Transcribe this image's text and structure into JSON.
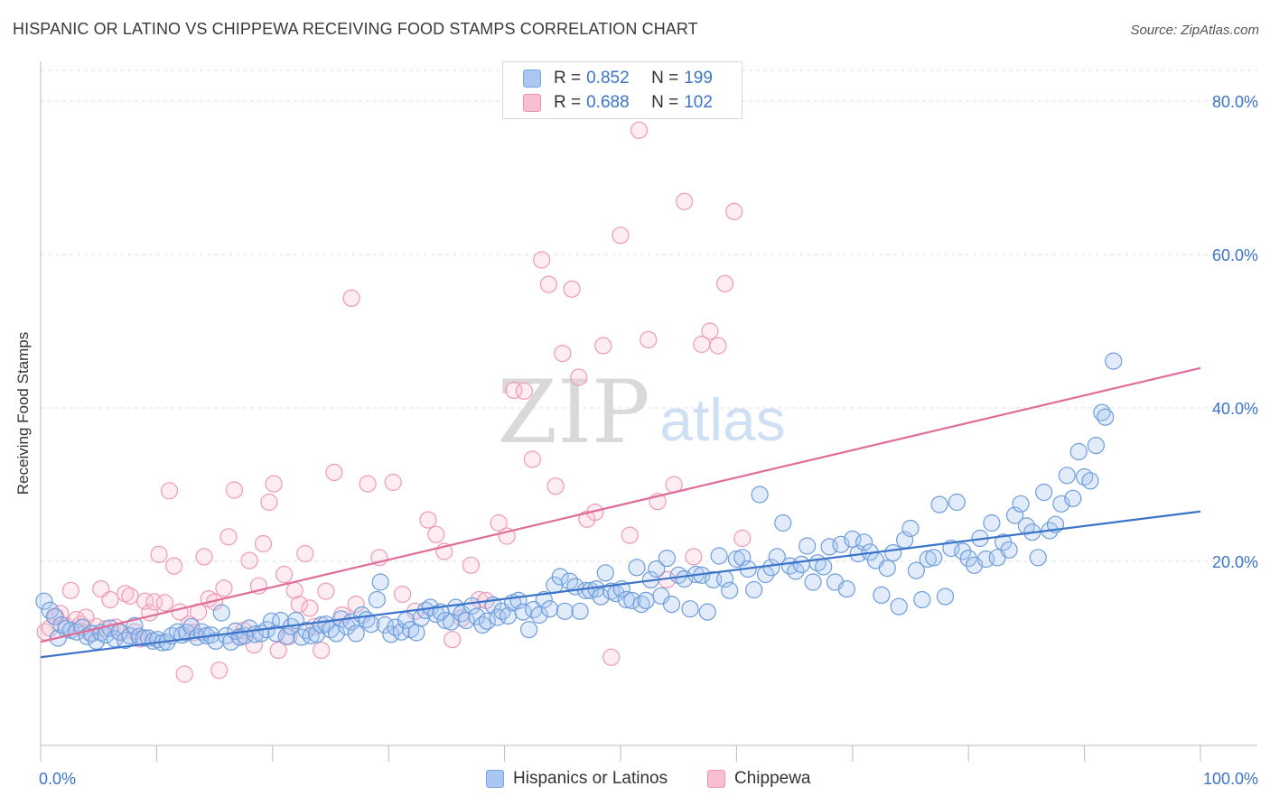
{
  "title": "HISPANIC OR LATINO VS CHIPPEWA RECEIVING FOOD STAMPS CORRELATION CHART",
  "source": "Source: ZipAtlas.com",
  "watermark": {
    "part1": "ZIP",
    "part2": "atlas"
  },
  "legend": {
    "r_label": "R =",
    "n_label": "N =",
    "rows": [
      {
        "r": "0.852",
        "n": "199",
        "color": "#a9c7f0",
        "stroke": "#7aa6e0"
      },
      {
        "r": "0.688",
        "n": "102",
        "color": "#f8bfd0",
        "stroke": "#ee92ad"
      }
    ]
  },
  "bottom_legend": [
    "Hispanics or Latinos",
    "Chippewa"
  ],
  "chart_data": {
    "type": "scatter",
    "title": "HISPANIC OR LATINO VS CHIPPEWA RECEIVING FOOD STAMPS CORRELATION CHART",
    "xlabel": "",
    "ylabel": "Receiving Food Stamps",
    "xlim": [
      0,
      100
    ],
    "ylim": [
      -4,
      84
    ],
    "x_tick_labels": [
      "0.0%",
      "100.0%"
    ],
    "y_ticks": [
      20,
      40,
      60,
      80
    ],
    "y_tick_labels": [
      "20.0%",
      "40.0%",
      "60.0%",
      "80.0%"
    ],
    "grid": true,
    "legend_position": "top-center",
    "colors": {
      "blue": "#3b74c9",
      "pink": "#e06c98",
      "blue_fill": "#a9c7f0",
      "pink_fill": "#f8bfd0"
    },
    "series": [
      {
        "name": "Hispanics or Latinos",
        "trend": {
          "x": [
            0,
            100
          ],
          "y": [
            7.5,
            26.5
          ]
        },
        "points": [
          [
            0.3,
            14.8
          ],
          [
            0.8,
            13.6
          ],
          [
            1.2,
            12.8
          ],
          [
            1.5,
            10
          ],
          [
            1.8,
            11.7
          ],
          [
            2.2,
            11.2
          ],
          [
            2.6,
            11
          ],
          [
            3.1,
            10.8
          ],
          [
            3.6,
            11.4
          ],
          [
            4,
            10.2
          ],
          [
            4.4,
            10.6
          ],
          [
            4.8,
            9.6
          ],
          [
            5.2,
            10.7
          ],
          [
            5.6,
            10.4
          ],
          [
            6,
            11.3
          ],
          [
            6.4,
            9.9
          ],
          [
            6.8,
            10.8
          ],
          [
            7.3,
            9.7
          ],
          [
            7.7,
            10.3
          ],
          [
            8.1,
            11.6
          ],
          [
            8.5,
            10.2
          ],
          [
            8.9,
            10
          ],
          [
            9.3,
            10
          ],
          [
            9.7,
            9.6
          ],
          [
            10.1,
            9.8
          ],
          [
            10.5,
            9.4
          ],
          [
            10.9,
            9.5
          ],
          [
            11.3,
            10.3
          ],
          [
            11.8,
            10.8
          ],
          [
            12.2,
            10.4
          ],
          [
            12.6,
            10.7
          ],
          [
            13,
            11.5
          ],
          [
            13.5,
            10.1
          ],
          [
            13.9,
            10.8
          ],
          [
            14.3,
            10.3
          ],
          [
            14.7,
            10.4
          ],
          [
            15.1,
            9.6
          ],
          [
            15.6,
            13.3
          ],
          [
            16,
            10.3
          ],
          [
            16.4,
            9.5
          ],
          [
            16.8,
            10.9
          ],
          [
            17.2,
            10.1
          ],
          [
            17.6,
            10.3
          ],
          [
            18,
            11.3
          ],
          [
            18.5,
            10.5
          ],
          [
            19,
            10.6
          ],
          [
            19.5,
            11.1
          ],
          [
            19.9,
            12.2
          ],
          [
            20.3,
            10.6
          ],
          [
            20.7,
            12.3
          ],
          [
            21.2,
            10.2
          ],
          [
            21.6,
            11.5
          ],
          [
            22,
            12.3
          ],
          [
            22.5,
            10.1
          ],
          [
            22.9,
            11
          ],
          [
            23.3,
            10.3
          ],
          [
            23.8,
            10.5
          ],
          [
            24.2,
            11.7
          ],
          [
            24.6,
            11.8
          ],
          [
            25,
            11.1
          ],
          [
            25.5,
            10.6
          ],
          [
            25.9,
            12.5
          ],
          [
            26.4,
            11.5
          ],
          [
            26.8,
            12.1
          ],
          [
            27.2,
            10.6
          ],
          [
            27.7,
            13
          ],
          [
            28.1,
            12.4
          ],
          [
            28.5,
            11.8
          ],
          [
            29,
            15
          ],
          [
            29.3,
            17.3
          ],
          [
            29.7,
            11.7
          ],
          [
            30.2,
            10.5
          ],
          [
            30.6,
            11.4
          ],
          [
            31.1,
            10.8
          ],
          [
            31.5,
            12.3
          ],
          [
            31.9,
            11.1
          ],
          [
            32.4,
            10.7
          ],
          [
            32.8,
            12.6
          ],
          [
            33.2,
            13.6
          ],
          [
            33.6,
            14
          ],
          [
            34.1,
            13.1
          ],
          [
            34.5,
            13.4
          ],
          [
            34.9,
            12.3
          ],
          [
            35.4,
            12.1
          ],
          [
            35.8,
            14
          ],
          [
            36.3,
            13.2
          ],
          [
            36.7,
            12.3
          ],
          [
            37.2,
            14.2
          ],
          [
            37.6,
            12.8
          ],
          [
            38.1,
            11.7
          ],
          [
            38.5,
            12.2
          ],
          [
            39,
            14.3
          ],
          [
            39.4,
            12.7
          ],
          [
            39.8,
            13.5
          ],
          [
            40.3,
            12.9
          ],
          [
            40.7,
            14.6
          ],
          [
            41.2,
            14.9
          ],
          [
            41.6,
            13.4
          ],
          [
            42.1,
            11.1
          ],
          [
            42.5,
            13.7
          ],
          [
            43,
            13
          ],
          [
            43.4,
            15
          ],
          [
            43.9,
            13.8
          ],
          [
            44.3,
            16.9
          ],
          [
            44.8,
            18
          ],
          [
            45.2,
            13.5
          ],
          [
            45.6,
            17.4
          ],
          [
            46.1,
            16.7
          ],
          [
            46.5,
            13.5
          ],
          [
            47,
            16.2
          ],
          [
            47.4,
            16.2
          ],
          [
            47.9,
            16.4
          ],
          [
            48.3,
            15.4
          ],
          [
            48.7,
            18.5
          ],
          [
            49.2,
            16.1
          ],
          [
            49.6,
            15.8
          ],
          [
            50.1,
            16.4
          ],
          [
            50.5,
            15
          ],
          [
            51,
            14.9
          ],
          [
            51.4,
            19.2
          ],
          [
            51.8,
            14.4
          ],
          [
            52.2,
            14.9
          ],
          [
            52.6,
            17.6
          ],
          [
            53.1,
            19
          ],
          [
            53.5,
            15.5
          ],
          [
            54,
            20.4
          ],
          [
            54.4,
            14.4
          ],
          [
            55,
            18.2
          ],
          [
            55.5,
            17.7
          ],
          [
            56,
            13.8
          ],
          [
            56.5,
            18.3
          ],
          [
            57,
            18.2
          ],
          [
            57.5,
            13.4
          ],
          [
            58,
            17.6
          ],
          [
            58.5,
            20.7
          ],
          [
            59,
            17.7
          ],
          [
            59.4,
            16.2
          ],
          [
            60,
            20.3
          ],
          [
            60.5,
            20.5
          ],
          [
            61,
            19
          ],
          [
            61.5,
            16.3
          ],
          [
            62,
            28.7
          ],
          [
            62.5,
            18.3
          ],
          [
            63,
            19.2
          ],
          [
            63.5,
            20.6
          ],
          [
            64,
            25
          ],
          [
            64.6,
            19.4
          ],
          [
            65.1,
            18.7
          ],
          [
            65.6,
            19.6
          ],
          [
            66.1,
            22
          ],
          [
            66.6,
            17.3
          ],
          [
            67,
            19.8
          ],
          [
            67.5,
            19.3
          ],
          [
            68,
            21.9
          ],
          [
            68.5,
            17.3
          ],
          [
            69,
            22.2
          ],
          [
            69.5,
            16.4
          ],
          [
            70,
            22.9
          ],
          [
            70.5,
            21
          ],
          [
            71,
            22.5
          ],
          [
            71.5,
            21.2
          ],
          [
            72,
            20.1
          ],
          [
            72.5,
            15.6
          ],
          [
            73,
            19.1
          ],
          [
            73.5,
            21.1
          ],
          [
            74,
            14.1
          ],
          [
            74.5,
            22.8
          ],
          [
            75,
            24.3
          ],
          [
            75.5,
            18.8
          ],
          [
            76,
            15
          ],
          [
            76.5,
            20.3
          ],
          [
            77,
            20.5
          ],
          [
            77.5,
            27.4
          ],
          [
            78,
            15.4
          ],
          [
            78.5,
            21.7
          ],
          [
            79,
            27.7
          ],
          [
            79.5,
            21.3
          ],
          [
            80,
            20.4
          ],
          [
            80.5,
            19.5
          ],
          [
            81,
            23
          ],
          [
            81.5,
            20.3
          ],
          [
            82,
            25
          ],
          [
            82.5,
            20.5
          ],
          [
            83,
            22.5
          ],
          [
            83.5,
            21.5
          ],
          [
            84,
            26
          ],
          [
            84.5,
            27.5
          ],
          [
            85,
            24.6
          ],
          [
            85.5,
            23.8
          ],
          [
            86,
            20.5
          ],
          [
            86.5,
            29
          ],
          [
            87,
            24
          ],
          [
            87.5,
            24.8
          ],
          [
            88,
            27.5
          ],
          [
            88.5,
            31.2
          ],
          [
            89,
            28.2
          ],
          [
            89.5,
            34.3
          ],
          [
            90,
            31
          ],
          [
            90.5,
            30.5
          ],
          [
            91,
            35.1
          ],
          [
            91.5,
            39.4
          ],
          [
            91.8,
            38.8
          ],
          [
            92.5,
            46.1
          ]
        ]
      },
      {
        "name": "Chippewa",
        "trend": {
          "x": [
            0,
            100
          ],
          "y": [
            9.5,
            45.2
          ]
        },
        "points": [
          [
            0.4,
            10.8
          ],
          [
            0.8,
            11.3
          ],
          [
            1.3,
            12.8
          ],
          [
            1.7,
            13.2
          ],
          [
            2.2,
            11.6
          ],
          [
            2.6,
            16.2
          ],
          [
            3.1,
            12.4
          ],
          [
            3.5,
            11.8
          ],
          [
            3.9,
            12.7
          ],
          [
            4.3,
            10.6
          ],
          [
            4.8,
            11.5
          ],
          [
            5.2,
            16.4
          ],
          [
            5.6,
            11.2
          ],
          [
            6,
            15
          ],
          [
            6.5,
            11.4
          ],
          [
            6.9,
            10.7
          ],
          [
            7.3,
            15.8
          ],
          [
            7.7,
            15.5
          ],
          [
            8.1,
            10.8
          ],
          [
            8.6,
            9.9
          ],
          [
            9,
            14.8
          ],
          [
            9.4,
            13.3
          ],
          [
            9.8,
            14.7
          ],
          [
            10.2,
            20.9
          ],
          [
            10.7,
            14.6
          ],
          [
            11.1,
            29.2
          ],
          [
            11.5,
            19.4
          ],
          [
            12,
            13.4
          ],
          [
            12.4,
            5.3
          ],
          [
            12.8,
            11.8
          ],
          [
            13.2,
            10.7
          ],
          [
            13.6,
            13.4
          ],
          [
            14.1,
            20.6
          ],
          [
            14.5,
            15.1
          ],
          [
            15,
            14.7
          ],
          [
            15.4,
            5.8
          ],
          [
            15.8,
            16.5
          ],
          [
            16.2,
            23.2
          ],
          [
            16.7,
            29.3
          ],
          [
            17.1,
            10.2
          ],
          [
            17.5,
            11
          ],
          [
            18,
            20.1
          ],
          [
            18.4,
            9.1
          ],
          [
            18.8,
            16.8
          ],
          [
            19.2,
            22.3
          ],
          [
            19.7,
            27.7
          ],
          [
            20.1,
            30.1
          ],
          [
            20.5,
            8.4
          ],
          [
            21,
            18.3
          ],
          [
            21.4,
            10.2
          ],
          [
            21.9,
            16.2
          ],
          [
            22.3,
            14.4
          ],
          [
            22.8,
            21
          ],
          [
            23.2,
            13.9
          ],
          [
            23.6,
            11.5
          ],
          [
            24.2,
            8.4
          ],
          [
            24.6,
            16.1
          ],
          [
            25.3,
            31.6
          ],
          [
            26,
            13
          ],
          [
            26.8,
            54.3
          ],
          [
            27.2,
            14.4
          ],
          [
            28.2,
            30.1
          ],
          [
            29.2,
            20.5
          ],
          [
            30.4,
            30.3
          ],
          [
            31.2,
            15.7
          ],
          [
            32.3,
            13.5
          ],
          [
            33.4,
            25.4
          ],
          [
            34.1,
            23.5
          ],
          [
            34.8,
            21.3
          ],
          [
            35.5,
            9.8
          ],
          [
            36.3,
            12.6
          ],
          [
            37.1,
            19.5
          ],
          [
            37.8,
            15
          ],
          [
            38.4,
            14.9
          ],
          [
            39.5,
            25
          ],
          [
            40.2,
            23.3
          ],
          [
            40.8,
            42.3
          ],
          [
            41.7,
            42.2
          ],
          [
            42.4,
            33.3
          ],
          [
            43.2,
            59.3
          ],
          [
            43.8,
            56.1
          ],
          [
            44.4,
            29.8
          ],
          [
            45,
            47.1
          ],
          [
            45.8,
            55.5
          ],
          [
            46.4,
            44
          ],
          [
            47.1,
            25.5
          ],
          [
            47.8,
            26.4
          ],
          [
            48.5,
            48.1
          ],
          [
            49.2,
            7.5
          ],
          [
            50,
            62.5
          ],
          [
            50.8,
            23.4
          ],
          [
            51.6,
            76.2
          ],
          [
            52.4,
            48.9
          ],
          [
            53.2,
            27.8
          ],
          [
            54,
            17.6
          ],
          [
            54.6,
            30
          ],
          [
            55.5,
            66.9
          ],
          [
            56.3,
            20.6
          ],
          [
            57,
            48.3
          ],
          [
            57.7,
            50
          ],
          [
            58.4,
            48.1
          ],
          [
            59,
            56.2
          ],
          [
            59.8,
            65.6
          ],
          [
            60.5,
            23
          ]
        ]
      }
    ]
  }
}
